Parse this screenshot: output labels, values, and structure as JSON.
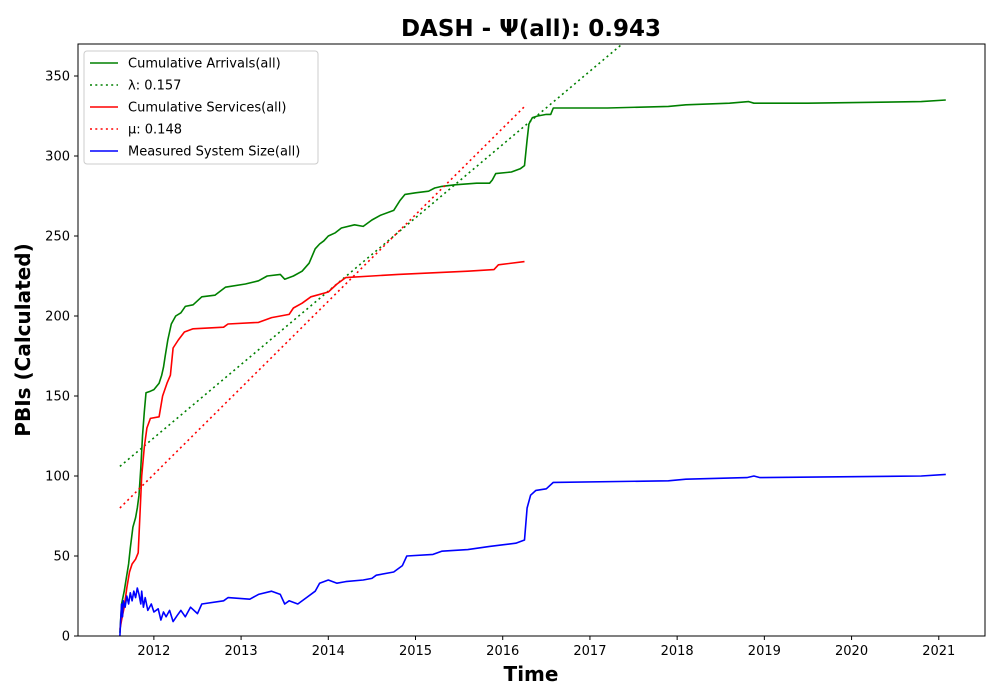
{
  "chart_data": {
    "type": "line",
    "title": "DASH -  Ψ(all): 0.943",
    "xlabel": "Time",
    "ylabel": "PBIs (Calculated)",
    "xlim": [
      2011.13,
      2021.53
    ],
    "ylim": [
      0,
      370
    ],
    "x_ticks": [
      2012,
      2013,
      2014,
      2015,
      2016,
      2017,
      2018,
      2019,
      2020,
      2021
    ],
    "x_tick_labels": [
      "2012",
      "2013",
      "2014",
      "2015",
      "2016",
      "2017",
      "2018",
      "2019",
      "2020",
      "2021"
    ],
    "y_ticks": [
      0,
      50,
      100,
      150,
      200,
      250,
      300,
      350
    ],
    "y_tick_labels": [
      "0",
      "50",
      "100",
      "150",
      "200",
      "250",
      "300",
      "350"
    ],
    "grid": false,
    "legend_position": "upper-left",
    "series": [
      {
        "name": "Cumulative Arrivals(all)",
        "color": "#008000",
        "style": "solid",
        "points": [
          [
            2011.61,
            2
          ],
          [
            2011.63,
            20
          ],
          [
            2011.66,
            28
          ],
          [
            2011.68,
            35
          ],
          [
            2011.71,
            45
          ],
          [
            2011.73,
            55
          ],
          [
            2011.76,
            68
          ],
          [
            2011.79,
            74
          ],
          [
            2011.81,
            80
          ],
          [
            2011.83,
            88
          ],
          [
            2011.85,
            105
          ],
          [
            2011.87,
            125
          ],
          [
            2011.89,
            140
          ],
          [
            2011.91,
            152
          ],
          [
            2011.96,
            153
          ],
          [
            2012.0,
            154
          ],
          [
            2012.06,
            158
          ],
          [
            2012.09,
            163
          ],
          [
            2012.11,
            168
          ],
          [
            2012.13,
            175
          ],
          [
            2012.16,
            185
          ],
          [
            2012.2,
            195
          ],
          [
            2012.25,
            200
          ],
          [
            2012.31,
            202
          ],
          [
            2012.36,
            206
          ],
          [
            2012.45,
            207
          ],
          [
            2012.55,
            212
          ],
          [
            2012.7,
            213
          ],
          [
            2012.82,
            218
          ],
          [
            2013.05,
            220
          ],
          [
            2013.2,
            222
          ],
          [
            2013.3,
            225
          ],
          [
            2013.45,
            226
          ],
          [
            2013.5,
            223
          ],
          [
            2013.6,
            225
          ],
          [
            2013.7,
            228
          ],
          [
            2013.78,
            233
          ],
          [
            2013.85,
            242
          ],
          [
            2013.9,
            245
          ],
          [
            2013.95,
            247
          ],
          [
            2014.0,
            250
          ],
          [
            2014.08,
            252
          ],
          [
            2014.15,
            255
          ],
          [
            2014.3,
            257
          ],
          [
            2014.4,
            256
          ],
          [
            2014.5,
            260
          ],
          [
            2014.6,
            263
          ],
          [
            2014.75,
            266
          ],
          [
            2014.82,
            272
          ],
          [
            2014.88,
            276
          ],
          [
            2015.0,
            277
          ],
          [
            2015.15,
            278
          ],
          [
            2015.22,
            280
          ],
          [
            2015.3,
            281
          ],
          [
            2015.45,
            282
          ],
          [
            2015.7,
            283
          ],
          [
            2015.85,
            283
          ],
          [
            2015.88,
            285
          ],
          [
            2015.92,
            289
          ],
          [
            2016.1,
            290
          ],
          [
            2016.2,
            292
          ],
          [
            2016.25,
            294
          ],
          [
            2016.28,
            310
          ],
          [
            2016.3,
            320
          ],
          [
            2016.34,
            324
          ],
          [
            2016.4,
            325
          ],
          [
            2016.5,
            326
          ],
          [
            2016.55,
            326
          ],
          [
            2016.58,
            330
          ],
          [
            2017.2,
            330
          ],
          [
            2017.9,
            331
          ],
          [
            2018.1,
            332
          ],
          [
            2018.6,
            333
          ],
          [
            2018.82,
            334
          ],
          [
            2018.88,
            333
          ],
          [
            2019.5,
            333
          ],
          [
            2020.8,
            334
          ],
          [
            2021.08,
            335
          ]
        ]
      },
      {
        "name": "λ: 0.157",
        "color": "#008000",
        "style": "dotted",
        "points": [
          [
            2011.61,
            106
          ],
          [
            2017.37,
            370
          ]
        ]
      },
      {
        "name": "Cumulative Services(all)",
        "color": "#ff0000",
        "style": "solid",
        "points": [
          [
            2011.61,
            4
          ],
          [
            2011.63,
            10
          ],
          [
            2011.66,
            18
          ],
          [
            2011.69,
            30
          ],
          [
            2011.72,
            40
          ],
          [
            2011.75,
            45
          ],
          [
            2011.79,
            48
          ],
          [
            2011.82,
            52
          ],
          [
            2011.84,
            75
          ],
          [
            2011.86,
            100
          ],
          [
            2011.89,
            118
          ],
          [
            2011.92,
            130
          ],
          [
            2011.96,
            136
          ],
          [
            2012.06,
            137
          ],
          [
            2012.1,
            150
          ],
          [
            2012.15,
            158
          ],
          [
            2012.19,
            163
          ],
          [
            2012.22,
            180
          ],
          [
            2012.28,
            185
          ],
          [
            2012.35,
            190
          ],
          [
            2012.45,
            192
          ],
          [
            2012.8,
            193
          ],
          [
            2012.85,
            195
          ],
          [
            2013.2,
            196
          ],
          [
            2013.35,
            199
          ],
          [
            2013.55,
            201
          ],
          [
            2013.6,
            205
          ],
          [
            2013.7,
            208
          ],
          [
            2013.8,
            212
          ],
          [
            2014.0,
            215
          ],
          [
            2014.1,
            220
          ],
          [
            2014.2,
            224
          ],
          [
            2014.5,
            225
          ],
          [
            2014.8,
            226
          ],
          [
            2015.2,
            227
          ],
          [
            2015.6,
            228
          ],
          [
            2015.9,
            229
          ],
          [
            2015.95,
            232
          ],
          [
            2016.25,
            234
          ]
        ]
      },
      {
        "name": "μ: 0.148",
        "color": "#ff0000",
        "style": "dotted",
        "points": [
          [
            2011.61,
            80
          ],
          [
            2016.27,
            332
          ]
        ]
      },
      {
        "name": "Measured System Size(all)",
        "color": "#0000ff",
        "style": "solid",
        "points": [
          [
            2011.61,
            0
          ],
          [
            2011.62,
            10
          ],
          [
            2011.63,
            20
          ],
          [
            2011.64,
            12
          ],
          [
            2011.65,
            22
          ],
          [
            2011.67,
            18
          ],
          [
            2011.69,
            25
          ],
          [
            2011.71,
            20
          ],
          [
            2011.73,
            27
          ],
          [
            2011.75,
            22
          ],
          [
            2011.77,
            28
          ],
          [
            2011.79,
            24
          ],
          [
            2011.81,
            30
          ],
          [
            2011.83,
            26
          ],
          [
            2011.85,
            20
          ],
          [
            2011.86,
            28
          ],
          [
            2011.88,
            18
          ],
          [
            2011.9,
            24
          ],
          [
            2011.93,
            16
          ],
          [
            2011.97,
            20
          ],
          [
            2012.0,
            15
          ],
          [
            2012.05,
            17
          ],
          [
            2012.08,
            10
          ],
          [
            2012.11,
            15
          ],
          [
            2012.14,
            12
          ],
          [
            2012.18,
            16
          ],
          [
            2012.22,
            9
          ],
          [
            2012.27,
            13
          ],
          [
            2012.31,
            16
          ],
          [
            2012.36,
            12
          ],
          [
            2012.42,
            18
          ],
          [
            2012.5,
            14
          ],
          [
            2012.55,
            20
          ],
          [
            2012.8,
            22
          ],
          [
            2012.85,
            24
          ],
          [
            2013.1,
            23
          ],
          [
            2013.2,
            26
          ],
          [
            2013.35,
            28
          ],
          [
            2013.45,
            26
          ],
          [
            2013.5,
            20
          ],
          [
            2013.55,
            22
          ],
          [
            2013.65,
            20
          ],
          [
            2013.75,
            24
          ],
          [
            2013.85,
            28
          ],
          [
            2013.9,
            33
          ],
          [
            2014.0,
            35
          ],
          [
            2014.1,
            33
          ],
          [
            2014.2,
            34
          ],
          [
            2014.4,
            35
          ],
          [
            2014.5,
            36
          ],
          [
            2014.55,
            38
          ],
          [
            2014.75,
            40
          ],
          [
            2014.85,
            44
          ],
          [
            2014.9,
            50
          ],
          [
            2015.2,
            51
          ],
          [
            2015.3,
            53
          ],
          [
            2015.6,
            54
          ],
          [
            2015.85,
            56
          ],
          [
            2016.0,
            57
          ],
          [
            2016.15,
            58
          ],
          [
            2016.25,
            60
          ],
          [
            2016.28,
            80
          ],
          [
            2016.32,
            88
          ],
          [
            2016.38,
            91
          ],
          [
            2016.5,
            92
          ],
          [
            2016.58,
            96
          ],
          [
            2017.9,
            97
          ],
          [
            2018.1,
            98
          ],
          [
            2018.8,
            99
          ],
          [
            2018.88,
            100
          ],
          [
            2018.95,
            99
          ],
          [
            2020.8,
            100
          ],
          [
            2021.08,
            101
          ]
        ]
      }
    ],
    "legend": [
      {
        "label": "Cumulative Arrivals(all)",
        "color": "#008000",
        "style": "solid"
      },
      {
        "label": "λ: 0.157",
        "color": "#008000",
        "style": "dotted"
      },
      {
        "label": "Cumulative Services(all)",
        "color": "#ff0000",
        "style": "solid"
      },
      {
        "label": "μ: 0.148",
        "color": "#ff0000",
        "style": "dotted"
      },
      {
        "label": "Measured System Size(all)",
        "color": "#0000ff",
        "style": "solid"
      }
    ]
  }
}
